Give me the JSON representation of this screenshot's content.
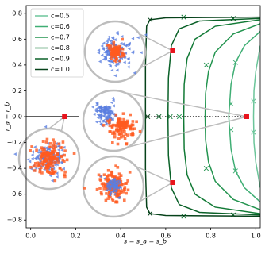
{
  "chart_data": {
    "type": "line",
    "x_label": "s = s_a = s_b",
    "y_label": "r_a − r_b",
    "xlim": [
      -0.02,
      1.02
    ],
    "ylim": [
      -0.86,
      0.86
    ],
    "xticks": [
      {
        "value": 0,
        "label": "0.0"
      },
      {
        "value": 0.2,
        "label": "0.2"
      },
      {
        "value": 0.4,
        "label": "0.4"
      },
      {
        "value": 0.6,
        "label": "0.6"
      },
      {
        "value": 0.8,
        "label": "0.8"
      },
      {
        "value": 1,
        "label": "1.0"
      }
    ],
    "yticks": [
      {
        "value": -0.8,
        "label": "−0.8"
      },
      {
        "value": -0.6,
        "label": "−0.6"
      },
      {
        "value": -0.4,
        "label": "−0.4"
      },
      {
        "value": -0.2,
        "label": "−0.2"
      },
      {
        "value": 0,
        "label": "0.0"
      },
      {
        "value": 0.2,
        "label": "0.2"
      },
      {
        "value": 0.4,
        "label": "0.4"
      },
      {
        "value": 0.6,
        "label": "0.6"
      },
      {
        "value": 0.8,
        "label": "0.8"
      }
    ],
    "legend_position": "upper-left",
    "series": [
      {
        "name": "c=0.5",
        "color": "#6cc59a",
        "x": [
          1.02,
          1.0,
          0.992,
          0.99,
          0.992,
          1.0,
          1.02
        ],
        "values": [
          0.55,
          0.35,
          0.2,
          0,
          -0.2,
          -0.35,
          -0.55
        ],
        "marker_x": [
          0.99,
          0.99
        ],
        "marker_y": [
          0.12,
          -0.12
        ]
      },
      {
        "name": "c=0.6",
        "color": "#3fae74",
        "x": [
          1.02,
          0.95,
          0.91,
          0.89,
          0.88,
          0.89,
          0.91,
          0.95,
          1.02
        ],
        "values": [
          0.66,
          0.55,
          0.42,
          0.25,
          0,
          -0.25,
          -0.42,
          -0.55,
          -0.66
        ],
        "marker_x": [
          0.91,
          0.89,
          0.89,
          0.91
        ],
        "marker_y": [
          0.42,
          0.1,
          -0.1,
          -0.42
        ]
      },
      {
        "name": "c=0.7",
        "color": "#23944f",
        "x": [
          1.02,
          0.9,
          0.82,
          0.79,
          0.777,
          0.775,
          0.777,
          0.79,
          0.82,
          0.9,
          1.02
        ],
        "values": [
          0.72,
          0.64,
          0.5,
          0.35,
          0.18,
          0,
          -0.18,
          -0.35,
          -0.5,
          -0.64,
          -0.72
        ],
        "marker_x": [
          0.78,
          0.66,
          0.78
        ],
        "marker_y": [
          0.4,
          0,
          -0.4
        ]
      },
      {
        "name": "c=0.8",
        "color": "#127a36",
        "x": [
          1.02,
          0.82,
          0.73,
          0.695,
          0.682,
          0.68,
          0.682,
          0.695,
          0.73,
          0.82,
          1.02
        ],
        "values": [
          0.75,
          0.7,
          0.6,
          0.45,
          0.25,
          0,
          -0.25,
          -0.45,
          -0.6,
          -0.7,
          -0.75
        ],
        "marker_x": [
          0.68,
          0.62,
          0.68
        ],
        "marker_y": [
          0.77,
          0,
          -0.77
        ]
      },
      {
        "name": "c=0.9",
        "color": "#0a6128",
        "x": [
          1.02,
          0.75,
          0.66,
          0.625,
          0.612,
          0.61,
          0.612,
          0.625,
          0.66,
          0.75,
          1.02
        ],
        "values": [
          0.76,
          0.74,
          0.68,
          0.55,
          0.3,
          0,
          -0.3,
          -0.55,
          -0.68,
          -0.74,
          -0.76
        ],
        "marker_x": [
          0.9,
          0.57,
          0.9
        ],
        "marker_y": [
          0.76,
          0,
          -0.76
        ]
      },
      {
        "name": "c=1.0",
        "color": "#06421a",
        "x": [
          1.02,
          0.6,
          0.53,
          0.515,
          0.51,
          0.51,
          0.51,
          0.515,
          0.53,
          0.6,
          1.02
        ],
        "values": [
          0.77,
          0.765,
          0.75,
          0.7,
          0.4,
          0,
          -0.4,
          -0.7,
          -0.75,
          -0.765,
          -0.77
        ],
        "marker_x": [
          0.53,
          0.52,
          0.53
        ],
        "marker_y": [
          0.75,
          0,
          -0.75
        ]
      }
    ],
    "highlights": {
      "color": "#e8141c",
      "x": [
        0.15,
        0.63,
        0.63,
        0.96
      ],
      "y": [
        0,
        0.51,
        -0.51,
        0
      ]
    }
  }
}
